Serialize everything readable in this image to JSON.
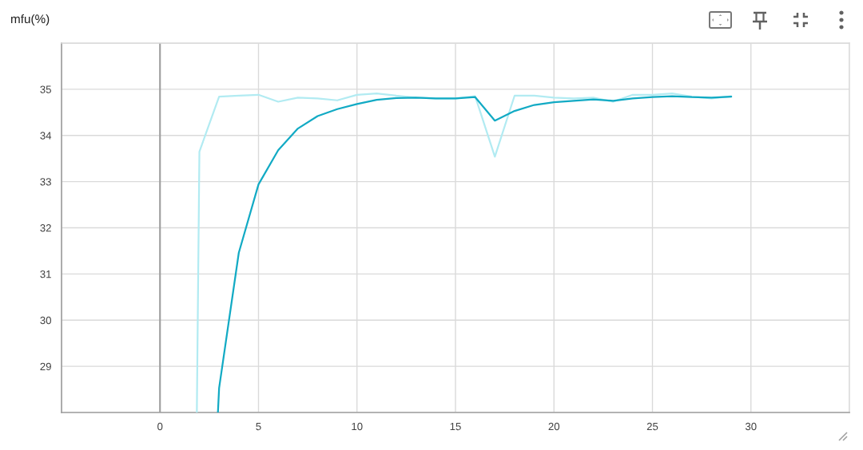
{
  "chart_data": {
    "type": "line",
    "title": "mfu(%)",
    "series": [
      {
        "color": "#b2ebf2",
        "x": [
          1.87,
          2,
          3,
          4,
          5,
          6,
          7,
          8,
          9,
          10,
          11,
          12,
          13,
          14,
          15,
          16,
          17,
          18,
          19,
          20,
          21,
          22,
          23,
          24,
          25,
          26,
          27,
          28,
          29
        ],
        "values": [
          28,
          33.65,
          34.84,
          34.86,
          34.88,
          34.73,
          34.82,
          34.8,
          34.76,
          34.88,
          34.91,
          34.86,
          34.82,
          34.8,
          34.8,
          34.85,
          33.54,
          34.86,
          34.86,
          34.82,
          34.8,
          34.82,
          34.73,
          34.88,
          34.88,
          34.91,
          34.84,
          34.8,
          34.85
        ]
      },
      {
        "color": "#12aac4",
        "x": [
          2.94,
          3,
          4,
          5,
          6,
          7,
          8,
          9,
          10,
          11,
          12,
          13,
          14,
          15,
          16,
          17,
          18,
          19,
          20,
          21,
          22,
          23,
          24,
          25,
          26,
          27,
          28,
          29
        ],
        "values": [
          28,
          28.53,
          31.46,
          32.94,
          33.68,
          34.15,
          34.42,
          34.57,
          34.68,
          34.77,
          34.81,
          34.82,
          34.8,
          34.8,
          34.83,
          34.32,
          34.53,
          34.66,
          34.72,
          34.75,
          34.78,
          34.75,
          34.8,
          34.83,
          34.85,
          34.83,
          34.82,
          34.84
        ]
      }
    ],
    "xlim": [
      -5,
      35
    ],
    "ylim": [
      28,
      36
    ],
    "xticks": [
      {
        "value": -5,
        "label": null
      },
      0,
      5,
      10,
      15,
      20,
      25,
      30,
      {
        "value": 35,
        "label": null
      }
    ],
    "yticks": [
      {
        "value": 28,
        "label": null
      },
      29,
      30,
      31,
      32,
      33,
      34,
      35,
      {
        "value": 36,
        "label": null
      }
    ],
    "grid": true,
    "line_style": "solid",
    "ref_lines": [
      {
        "axis": "x",
        "value": 0,
        "color": "#9e9e9e"
      }
    ]
  }
}
